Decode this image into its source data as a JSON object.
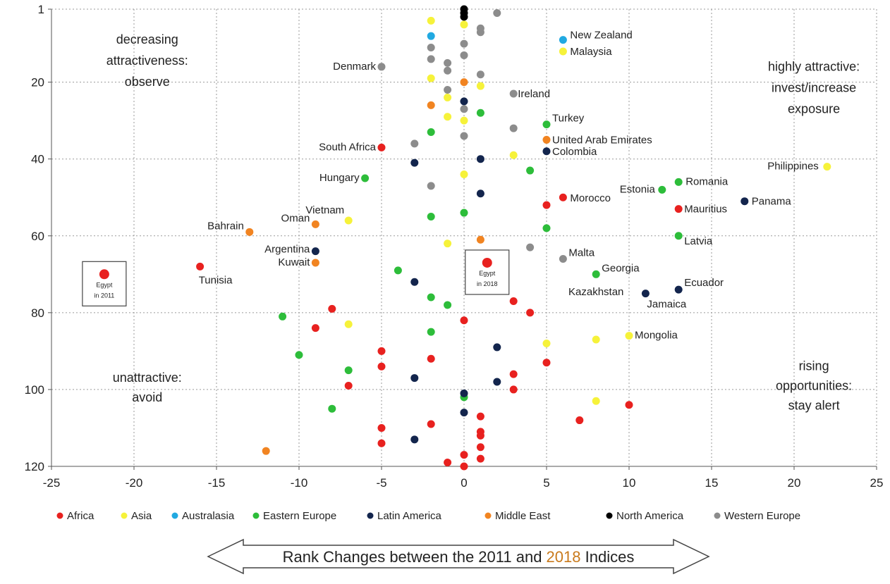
{
  "chart_data": {
    "type": "scatter",
    "title": "",
    "xlabel_parts": [
      "Rank Changes between the 2011 and ",
      "2018",
      " Indices"
    ],
    "xlim": [
      -25,
      25
    ],
    "ylim": [
      120,
      1
    ],
    "y_inverted": true,
    "xticks": [
      -25,
      -20,
      -15,
      -10,
      -5,
      0,
      5,
      10,
      15,
      20,
      25
    ],
    "yticks": [
      1,
      20,
      40,
      60,
      80,
      100,
      120
    ],
    "grid": true,
    "legend_position": "bottom",
    "colors": {
      "Africa": "#e8211f",
      "Asia": "#f6f23a",
      "Australasia": "#21a9e1",
      "Eastern Europe": "#2dbd3a",
      "Latin America": "#13254d",
      "Middle East": "#f18421",
      "North America": "#000000",
      "Western Europe": "#8c8c8c",
      "highlight_text": "#c97a1c"
    },
    "legend": [
      "Africa",
      "Asia",
      "Australasia",
      "Eastern Europe",
      "Latin America",
      "Middle East",
      "North America",
      "Western Europe"
    ],
    "quadrant_labels": {
      "top_left": [
        "decreasing",
        "attractiveness:",
        "observe"
      ],
      "top_right": [
        "highly attractive:",
        "invest/increase",
        "exposure"
      ],
      "bottom_left": [
        "unattractive:",
        "avoid"
      ],
      "bottom_right": [
        "rising",
        "opportunities:",
        "stay alert"
      ]
    },
    "egypt_boxes": [
      {
        "line1": "Egypt",
        "line2": "in 2011",
        "x": -21.8,
        "y": 70
      },
      {
        "line1": "Egypt",
        "line2": "in 2018",
        "x": 1.4,
        "y": 67
      }
    ],
    "series": [
      {
        "name": "Africa",
        "points": [
          {
            "x": -16,
            "y": 68,
            "label": "Tunisia"
          },
          {
            "x": -5,
            "y": 37,
            "label": "South Africa"
          },
          {
            "x": 6,
            "y": 50,
            "label": "Morocco"
          },
          {
            "x": 13,
            "y": 53,
            "label": "Mauritius"
          },
          {
            "x": 5,
            "y": 52
          },
          {
            "x": -8,
            "y": 79
          },
          {
            "x": -9,
            "y": 84
          },
          {
            "x": 3,
            "y": 77
          },
          {
            "x": 4,
            "y": 80
          },
          {
            "x": 0,
            "y": 82
          },
          {
            "x": -5,
            "y": 90
          },
          {
            "x": -5,
            "y": 94
          },
          {
            "x": -2,
            "y": 92
          },
          {
            "x": 3,
            "y": 96
          },
          {
            "x": 5,
            "y": 93
          },
          {
            "x": -7,
            "y": 99
          },
          {
            "x": 3,
            "y": 100
          },
          {
            "x": 10,
            "y": 104
          },
          {
            "x": 7,
            "y": 108
          },
          {
            "x": -5,
            "y": 110
          },
          {
            "x": -5,
            "y": 114
          },
          {
            "x": -2,
            "y": 109
          },
          {
            "x": 1,
            "y": 107
          },
          {
            "x": 1,
            "y": 111
          },
          {
            "x": 1,
            "y": 112
          },
          {
            "x": 1,
            "y": 115
          },
          {
            "x": 1,
            "y": 118
          },
          {
            "x": 0,
            "y": 117
          },
          {
            "x": 0,
            "y": 120
          },
          {
            "x": -1,
            "y": 119
          }
        ]
      },
      {
        "name": "Asia",
        "points": [
          {
            "x": 6,
            "y": 12,
            "label": "Malaysia"
          },
          {
            "x": -7,
            "y": 56,
            "label": "Vietnam"
          },
          {
            "x": 22,
            "y": 42,
            "label": "Philippines"
          },
          {
            "x": 10,
            "y": 86,
            "label": "Mongolia"
          },
          {
            "x": -2,
            "y": 4
          },
          {
            "x": 0,
            "y": 5
          },
          {
            "x": -2,
            "y": 19
          },
          {
            "x": 1,
            "y": 21
          },
          {
            "x": -1,
            "y": 24
          },
          {
            "x": -1,
            "y": 29
          },
          {
            "x": 0,
            "y": 30
          },
          {
            "x": 3,
            "y": 39
          },
          {
            "x": 0,
            "y": 44
          },
          {
            "x": -1,
            "y": 62
          },
          {
            "x": -7,
            "y": 83
          },
          {
            "x": 8,
            "y": 87
          },
          {
            "x": 5,
            "y": 88
          },
          {
            "x": 8,
            "y": 103
          }
        ]
      },
      {
        "name": "Australasia",
        "points": [
          {
            "x": 6,
            "y": 9,
            "label": "New Zealand"
          },
          {
            "x": -2,
            "y": 8
          }
        ]
      },
      {
        "name": "Eastern Europe",
        "points": [
          {
            "x": 5,
            "y": 31,
            "label": "Turkey"
          },
          {
            "x": -6,
            "y": 45,
            "label": "Hungary"
          },
          {
            "x": 12,
            "y": 48,
            "label": "Estonia"
          },
          {
            "x": 13,
            "y": 46,
            "label": "Romania"
          },
          {
            "x": 13,
            "y": 60,
            "label": "Latvia"
          },
          {
            "x": 8,
            "y": 70,
            "label": "Georgia"
          },
          {
            "x": 1,
            "y": 28
          },
          {
            "x": -2,
            "y": 33
          },
          {
            "x": 4,
            "y": 43
          },
          {
            "x": 0,
            "y": 54
          },
          {
            "x": -2,
            "y": 55
          },
          {
            "x": 5,
            "y": 58
          },
          {
            "x": -4,
            "y": 69
          },
          {
            "x": -2,
            "y": 76
          },
          {
            "x": -1,
            "y": 78
          },
          {
            "x": -11,
            "y": 81
          },
          {
            "x": -2,
            "y": 85
          },
          {
            "x": -10,
            "y": 91
          },
          {
            "x": -7,
            "y": 95
          },
          {
            "x": -8,
            "y": 105
          },
          {
            "x": 0,
            "y": 102
          }
        ]
      },
      {
        "name": "Latin America",
        "points": [
          {
            "x": 5,
            "y": 38,
            "label": "Colombia"
          },
          {
            "x": 17,
            "y": 51,
            "label": "Panama"
          },
          {
            "x": -9,
            "y": 64,
            "label": "Argentina"
          },
          {
            "x": 13,
            "y": 74,
            "label": "Ecuador"
          },
          {
            "x": 11,
            "y": 75,
            "label": "Jamaica"
          },
          {
            "x": 0,
            "y": 25
          },
          {
            "x": 1,
            "y": 40
          },
          {
            "x": -3,
            "y": 41
          },
          {
            "x": 1,
            "y": 49
          },
          {
            "x": -3,
            "y": 72
          },
          {
            "x": 2,
            "y": 89
          },
          {
            "x": -3,
            "y": 97
          },
          {
            "x": 2,
            "y": 98
          },
          {
            "x": 0,
            "y": 101
          },
          {
            "x": 0,
            "y": 106
          },
          {
            "x": -3,
            "y": 113
          }
        ]
      },
      {
        "name": "Middle East",
        "points": [
          {
            "x": 5,
            "y": 35,
            "label": "United Arab Emirates"
          },
          {
            "x": -9,
            "y": 57,
            "label": "Oman"
          },
          {
            "x": -13,
            "y": 59,
            "label": "Bahrain"
          },
          {
            "x": -9,
            "y": 67,
            "label": "Kuwait"
          },
          {
            "x": 0,
            "y": 20
          },
          {
            "x": -2,
            "y": 26
          },
          {
            "x": 1,
            "y": 61
          },
          {
            "x": -12,
            "y": 116
          }
        ]
      },
      {
        "name": "North America",
        "points": [
          {
            "x": 0,
            "y": 1
          },
          {
            "x": 0,
            "y": 2
          },
          {
            "x": 0,
            "y": 3
          }
        ]
      },
      {
        "name": "Western Europe",
        "points": [
          {
            "x": -5,
            "y": 16,
            "label": "Denmark"
          },
          {
            "x": 3,
            "y": 23,
            "label": "Ireland"
          },
          {
            "x": 6,
            "y": 66,
            "label": "Malta"
          },
          {
            "x": 2,
            "y": 2
          },
          {
            "x": 1,
            "y": 6
          },
          {
            "x": 1,
            "y": 7
          },
          {
            "x": 0,
            "y": 10
          },
          {
            "x": -2,
            "y": 11
          },
          {
            "x": 0,
            "y": 13
          },
          {
            "x": -2,
            "y": 14
          },
          {
            "x": -1,
            "y": 15
          },
          {
            "x": -1,
            "y": 17
          },
          {
            "x": 1,
            "y": 18
          },
          {
            "x": -1,
            "y": 22
          },
          {
            "x": 0,
            "y": 27
          },
          {
            "x": 3,
            "y": 32
          },
          {
            "x": 0,
            "y": 34
          },
          {
            "x": -3,
            "y": 36
          },
          {
            "x": -2,
            "y": 47
          },
          {
            "x": 4,
            "y": 63
          }
        ]
      }
    ],
    "point_label_extra": {
      "Kazakhstan": {
        "x": 8,
        "y": 71,
        "label": "Kazakhstan"
      }
    },
    "egypt": {
      "series": "Africa",
      "points": [
        {
          "x": -21.8,
          "y": 70
        },
        {
          "x": 1.4,
          "y": 67
        }
      ]
    }
  }
}
